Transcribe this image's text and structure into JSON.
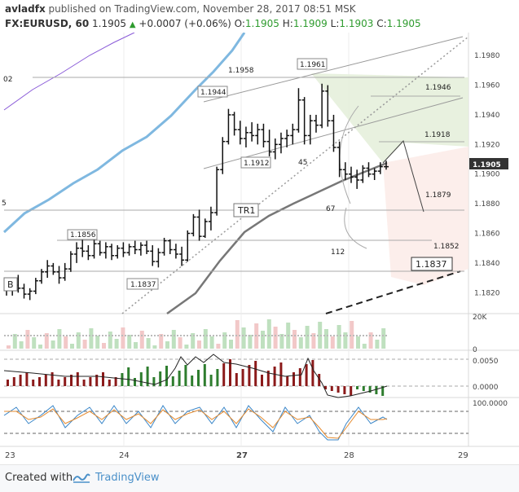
{
  "header": {
    "author": "avladfx",
    "published_text": "published on TradingView.com, November 28, 2017 08:51 MSK",
    "symbol": "FX:EURUSD, 60",
    "last": "1.1905",
    "change": "+0.0007 (+0.06%)",
    "o_label": "O:",
    "o_value": "1.1905",
    "h_label": "H:",
    "h_value": "1.1909",
    "l_label": "L:",
    "l_value": "1.1903",
    "c_label": "C:",
    "c_value": "1.1905"
  },
  "footer": {
    "created_with": "Created with",
    "brand": "TradingView"
  },
  "colors": {
    "up": "#2e9b2e",
    "down": "#8b1a1a",
    "ma_fast": "#4a9bd8",
    "ma_slow": "#7f7f7f",
    "ma_purple": "#8a5bd8",
    "price_badge": "#333333"
  },
  "chart_data": [
    {
      "type": "candlestick",
      "title": "",
      "x_ticks": [
        "23",
        "24",
        "27",
        "28",
        "29"
      ],
      "y_ticks": [
        "1.1980",
        "1.1960",
        "1.1940",
        "1.1920",
        "1.1900",
        "1.1880",
        "1.1860",
        "1.1840",
        "1.1820"
      ],
      "ylim": [
        1.1813,
        1.199
      ],
      "current_price_label": "1.1905",
      "ohlc": [
        [
          1.1826,
          1.183,
          1.1818,
          1.1822
        ],
        [
          1.1822,
          1.1828,
          1.1818,
          1.1825
        ],
        [
          1.1825,
          1.1832,
          1.182,
          1.1823
        ],
        [
          1.1823,
          1.1826,
          1.1816,
          1.1819
        ],
        [
          1.1819,
          1.1823,
          1.1815,
          1.1821
        ],
        [
          1.1821,
          1.183,
          1.1819,
          1.1828
        ],
        [
          1.1828,
          1.1836,
          1.1826,
          1.1834
        ],
        [
          1.1834,
          1.1842,
          1.183,
          1.1838
        ],
        [
          1.1838,
          1.184,
          1.1832,
          1.1834
        ],
        [
          1.1834,
          1.1838,
          1.1826,
          1.183
        ],
        [
          1.183,
          1.184,
          1.1828,
          1.1836
        ],
        [
          1.1836,
          1.1848,
          1.1834,
          1.1846
        ],
        [
          1.1846,
          1.1854,
          1.184,
          1.185
        ],
        [
          1.185,
          1.1856,
          1.1844,
          1.1848
        ],
        [
          1.1848,
          1.1852,
          1.1842,
          1.1845
        ],
        [
          1.1845,
          1.1856,
          1.1843,
          1.1853
        ],
        [
          1.1853,
          1.1855,
          1.1845,
          1.1847
        ],
        [
          1.1847,
          1.1854,
          1.1843,
          1.1851
        ],
        [
          1.1851,
          1.1853,
          1.1842,
          1.1845
        ],
        [
          1.1845,
          1.1852,
          1.1843,
          1.185
        ],
        [
          1.185,
          1.1854,
          1.1844,
          1.1847
        ],
        [
          1.1847,
          1.1853,
          1.1845,
          1.1851
        ],
        [
          1.1851,
          1.1855,
          1.1846,
          1.1849
        ],
        [
          1.1849,
          1.1854,
          1.1845,
          1.1852
        ],
        [
          1.1852,
          1.1855,
          1.1846,
          1.1848
        ],
        [
          1.1848,
          1.1852,
          1.1838,
          1.1841
        ],
        [
          1.1841,
          1.185,
          1.1837,
          1.1847
        ],
        [
          1.1847,
          1.1857,
          1.1845,
          1.1855
        ],
        [
          1.1855,
          1.1856,
          1.1846,
          1.1849
        ],
        [
          1.1849,
          1.1853,
          1.1843,
          1.1846
        ],
        [
          1.1846,
          1.1851,
          1.1838,
          1.1842
        ],
        [
          1.1842,
          1.1862,
          1.1841,
          1.186
        ],
        [
          1.186,
          1.1873,
          1.1858,
          1.1871
        ],
        [
          1.1871,
          1.1876,
          1.1855,
          1.1858
        ],
        [
          1.1858,
          1.187,
          1.1857,
          1.1868
        ],
        [
          1.1868,
          1.1878,
          1.1862,
          1.1874
        ],
        [
          1.1874,
          1.1905,
          1.1872,
          1.1903
        ],
        [
          1.1903,
          1.1925,
          1.19,
          1.1922
        ],
        [
          1.1922,
          1.1944,
          1.192,
          1.194
        ],
        [
          1.194,
          1.1942,
          1.1926,
          1.193
        ],
        [
          1.193,
          1.1936,
          1.192,
          1.1924
        ],
        [
          1.1924,
          1.1932,
          1.1918,
          1.1928
        ],
        [
          1.1928,
          1.1935,
          1.1922,
          1.1926
        ],
        [
          1.1926,
          1.1934,
          1.192,
          1.193
        ],
        [
          1.193,
          1.1934,
          1.1918,
          1.1922
        ],
        [
          1.1922,
          1.193,
          1.1912,
          1.1915
        ],
        [
          1.1915,
          1.1924,
          1.191,
          1.192
        ],
        [
          1.192,
          1.1928,
          1.1914,
          1.1924
        ],
        [
          1.1924,
          1.193,
          1.1918,
          1.1926
        ],
        [
          1.1926,
          1.1934,
          1.192,
          1.193
        ],
        [
          1.193,
          1.1958,
          1.1928,
          1.195
        ],
        [
          1.195,
          1.1952,
          1.192,
          1.1926
        ],
        [
          1.1926,
          1.194,
          1.192,
          1.1936
        ],
        [
          1.1936,
          1.194,
          1.1928,
          1.1933
        ],
        [
          1.1933,
          1.1961,
          1.1931,
          1.1956
        ],
        [
          1.1956,
          1.196,
          1.1932,
          1.1936
        ],
        [
          1.1936,
          1.194,
          1.1915,
          1.1918
        ],
        [
          1.1918,
          1.1922,
          1.1898,
          1.1903
        ],
        [
          1.1903,
          1.1908,
          1.1896,
          1.19
        ],
        [
          1.19,
          1.1905,
          1.1894,
          1.1898
        ],
        [
          1.1898,
          1.1903,
          1.189,
          1.1896
        ],
        [
          1.1896,
          1.1906,
          1.1894,
          1.1904
        ],
        [
          1.1904,
          1.1908,
          1.1898,
          1.19
        ],
        [
          1.19,
          1.1904,
          1.1896,
          1.1902
        ],
        [
          1.1902,
          1.1908,
          1.19,
          1.1905
        ],
        [
          1.1905,
          1.1909,
          1.1903,
          1.1905
        ]
      ],
      "annotations": [
        "1.1961",
        "1.1958",
        "1.1944",
        "1.1946",
        "1.1918",
        "1.1912",
        "45",
        "1.1879",
        "67",
        "1.1856",
        "1.1852",
        "112",
        "1.1837",
        "1.1837",
        "TR1",
        "B",
        "02",
        "5"
      ]
    },
    {
      "type": "bar",
      "panel": "volume",
      "y_ticks": [
        "20K",
        "0"
      ]
    },
    {
      "type": "histogram",
      "panel": "macd",
      "y_ticks": [
        "0.0050",
        "0.0000"
      ]
    },
    {
      "type": "line",
      "panel": "stochastic",
      "y_ticks": [
        "100.0000"
      ]
    }
  ]
}
